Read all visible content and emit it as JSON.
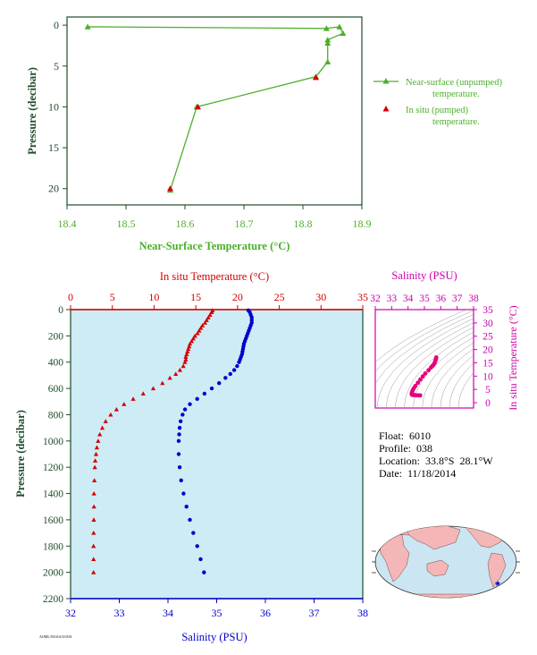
{
  "colors": {
    "green": "#4caf2a",
    "red": "#d40000",
    "blue": "#0000cc",
    "magenta": "#cc00aa",
    "dark_axis": "#1e4d2b",
    "plot_bg": "#ceecf5",
    "land": "#f4b6b6",
    "ocean": "#cbe6f2"
  },
  "top_chart": {
    "xlabel": "Near-Surface Temperature (°C)",
    "ylabel": "Pressure (decibar)",
    "x_ticks": [
      "18.4",
      "18.5",
      "18.6",
      "18.7",
      "18.8",
      "18.9"
    ],
    "y_ticks": [
      "0",
      "5",
      "10",
      "15",
      "20"
    ],
    "legend": {
      "near_surface": "Near-surface (unpumped)",
      "near_surface_2": "temperature.",
      "in_situ": "In situ (pumped)",
      "in_situ_2": "temperature."
    }
  },
  "main_chart": {
    "top_xlabel": "In situ Temperature (°C)",
    "bottom_xlabel": "Salinity (PSU)",
    "ylabel": "Pressure (decibar)",
    "temp_ticks": [
      "0",
      "5",
      "10",
      "15",
      "20",
      "25",
      "30",
      "35"
    ],
    "sal_ticks": [
      "32",
      "33",
      "34",
      "35",
      "36",
      "37",
      "38"
    ],
    "p_ticks": [
      "0",
      "200",
      "400",
      "600",
      "800",
      "1000",
      "1200",
      "1400",
      "1600",
      "1800",
      "2000",
      "2200"
    ],
    "footnote": "AOML/NOAA/GOOS"
  },
  "ts_chart": {
    "xlabel": "Salinity (PSU)",
    "ylabel": "In situ Temperature (°C)",
    "sal_ticks": [
      "32",
      "33",
      "34",
      "35",
      "36",
      "37",
      "38"
    ],
    "temp_ticks": [
      "0",
      "5",
      "10",
      "15",
      "20",
      "25",
      "30",
      "35"
    ]
  },
  "info": {
    "float": "Float:  6010",
    "profile": "Profile:  038",
    "location": "Location:  33.8°S  28.1°W",
    "date": "Date:  11/18/2014"
  },
  "chart_data": [
    {
      "type": "line",
      "title": "",
      "xlabel": "Near-Surface Temperature (°C)",
      "ylabel": "Pressure (decibar)",
      "xlim": [
        18.4,
        18.9
      ],
      "ylim": [
        22,
        -1
      ],
      "legend": "right",
      "series": [
        {
          "name": "Near-surface (unpumped) temperature.",
          "points": [
            [
              18.435,
              0.2
            ],
            [
              18.84,
              0.4
            ],
            [
              18.862,
              0.2
            ],
            [
              18.868,
              1.0
            ],
            [
              18.842,
              1.8
            ],
            [
              18.842,
              2.2
            ],
            [
              18.842,
              4.5
            ],
            [
              18.822,
              6.3
            ],
            [
              18.62,
              10.0
            ],
            [
              18.575,
              20.2
            ]
          ]
        },
        {
          "name": "In situ (pumped) temperature.",
          "points": [
            [
              18.822,
              6.4
            ],
            [
              18.622,
              10.0
            ],
            [
              18.575,
              20.0
            ]
          ]
        }
      ]
    },
    {
      "type": "scatter",
      "title": "",
      "ylabel": "Pressure (decibar)",
      "ylim": [
        2200,
        0
      ],
      "series": [
        {
          "name": "In situ Temperature (°C)",
          "axis": "top",
          "xlim": [
            0,
            35
          ],
          "points": [
            [
              17.0,
              6
            ],
            [
              16.9,
              20
            ],
            [
              16.7,
              40
            ],
            [
              16.5,
              60
            ],
            [
              16.3,
              80
            ],
            [
              16.1,
              100
            ],
            [
              15.8,
              120
            ],
            [
              15.6,
              140
            ],
            [
              15.4,
              160
            ],
            [
              15.2,
              180
            ],
            [
              14.9,
              200
            ],
            [
              14.7,
              220
            ],
            [
              14.5,
              240
            ],
            [
              14.3,
              260
            ],
            [
              14.2,
              280
            ],
            [
              14.1,
              300
            ],
            [
              14.0,
              320
            ],
            [
              13.9,
              340
            ],
            [
              13.8,
              360
            ],
            [
              13.8,
              380
            ],
            [
              13.7,
              400
            ],
            [
              13.5,
              430
            ],
            [
              13.1,
              460
            ],
            [
              12.6,
              490
            ],
            [
              11.9,
              520
            ],
            [
              11.0,
              560
            ],
            [
              9.9,
              600
            ],
            [
              8.7,
              640
            ],
            [
              7.5,
              680
            ],
            [
              6.4,
              720
            ],
            [
              5.5,
              760
            ],
            [
              4.8,
              800
            ],
            [
              4.2,
              850
            ],
            [
              3.8,
              900
            ],
            [
              3.5,
              950
            ],
            [
              3.3,
              1000
            ],
            [
              3.15,
              1050
            ],
            [
              3.05,
              1100
            ],
            [
              2.95,
              1150
            ],
            [
              2.9,
              1200
            ],
            [
              2.85,
              1300
            ],
            [
              2.8,
              1400
            ],
            [
              2.8,
              1500
            ],
            [
              2.78,
              1600
            ],
            [
              2.76,
              1700
            ],
            [
              2.75,
              1800
            ],
            [
              2.75,
              1900
            ],
            [
              2.75,
              2000
            ]
          ]
        },
        {
          "name": "Salinity (PSU)",
          "axis": "bottom",
          "xlim": [
            32,
            38
          ],
          "points": [
            [
              35.65,
              6
            ],
            [
              35.68,
              20
            ],
            [
              35.7,
              40
            ],
            [
              35.72,
              60
            ],
            [
              35.72,
              80
            ],
            [
              35.72,
              100
            ],
            [
              35.7,
              120
            ],
            [
              35.68,
              140
            ],
            [
              35.66,
              160
            ],
            [
              35.64,
              180
            ],
            [
              35.62,
              200
            ],
            [
              35.6,
              220
            ],
            [
              35.58,
              240
            ],
            [
              35.56,
              260
            ],
            [
              35.55,
              280
            ],
            [
              35.54,
              300
            ],
            [
              35.53,
              320
            ],
            [
              35.52,
              340
            ],
            [
              35.5,
              360
            ],
            [
              35.48,
              380
            ],
            [
              35.46,
              400
            ],
            [
              35.42,
              430
            ],
            [
              35.36,
              460
            ],
            [
              35.28,
              490
            ],
            [
              35.18,
              520
            ],
            [
              35.05,
              560
            ],
            [
              34.9,
              600
            ],
            [
              34.75,
              640
            ],
            [
              34.6,
              680
            ],
            [
              34.45,
              720
            ],
            [
              34.35,
              760
            ],
            [
              34.3,
              800
            ],
            [
              34.26,
              850
            ],
            [
              34.24,
              900
            ],
            [
              34.23,
              950
            ],
            [
              34.22,
              1000
            ],
            [
              34.22,
              1100
            ],
            [
              34.24,
              1200
            ],
            [
              34.27,
              1300
            ],
            [
              34.32,
              1400
            ],
            [
              34.38,
              1500
            ],
            [
              34.45,
              1600
            ],
            [
              34.52,
              1700
            ],
            [
              34.6,
              1800
            ],
            [
              34.67,
              1900
            ],
            [
              34.74,
              2000
            ]
          ]
        }
      ]
    },
    {
      "type": "scatter",
      "title": "",
      "xlabel": "Salinity (PSU)",
      "ylabel": "In situ Temperature (°C)",
      "xlim": [
        32,
        38
      ],
      "ylim": [
        -2,
        35
      ],
      "series": [
        {
          "name": "T-S",
          "points": [
            [
              35.72,
              17.0
            ],
            [
              35.7,
              16.3
            ],
            [
              35.66,
              15.6
            ],
            [
              35.62,
              14.9
            ],
            [
              35.56,
              14.3
            ],
            [
              35.52,
              14.0
            ],
            [
              35.48,
              13.8
            ],
            [
              35.4,
              13.2
            ],
            [
              35.25,
              12.2
            ],
            [
              35.05,
              11.0
            ],
            [
              34.9,
              9.9
            ],
            [
              34.75,
              8.7
            ],
            [
              34.6,
              7.5
            ],
            [
              34.45,
              6.3
            ],
            [
              34.35,
              5.4
            ],
            [
              34.28,
              4.6
            ],
            [
              34.24,
              3.9
            ],
            [
              34.22,
              3.4
            ],
            [
              34.24,
              3.0
            ],
            [
              34.3,
              2.9
            ],
            [
              34.4,
              2.85
            ],
            [
              34.5,
              2.8
            ],
            [
              34.62,
              2.76
            ],
            [
              34.74,
              2.75
            ]
          ]
        }
      ]
    }
  ]
}
